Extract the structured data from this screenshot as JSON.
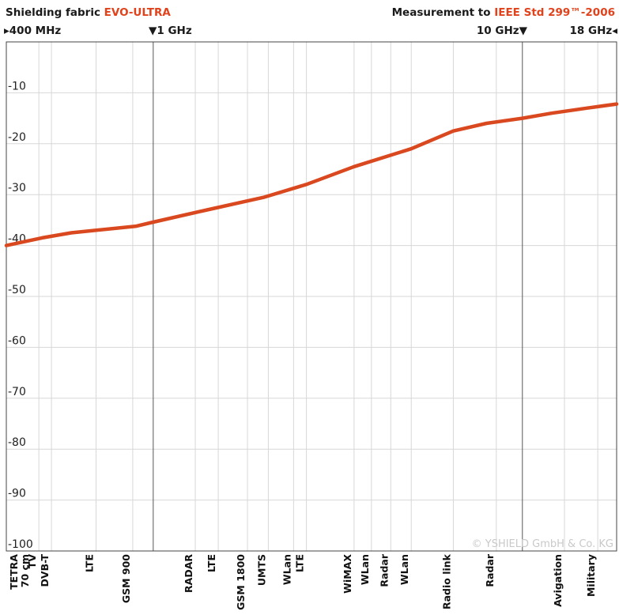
{
  "header": {
    "title_prefix": "Shielding fabric ",
    "title_accent": "EVO-ULTRA",
    "measure_prefix": "Measurement to ",
    "measure_accent": "IEEE Std 299™-2006",
    "marker_400mhz": "▸400 MHz",
    "marker_1ghz": "▼1 GHz",
    "marker_10ghz": "10 GHz▼",
    "marker_18ghz": "18 GHz◂"
  },
  "copyright": "© YSHIELD GmbH & Co. KG",
  "colors": {
    "line": "#d9481f",
    "accent": "#e0421c",
    "grid": "#d7d7d7",
    "major": "#555555"
  },
  "chart_data": {
    "type": "line",
    "x_scale": "frequency (MHz), 400 MHz – 18 GHz",
    "xlim_mhz": [
      400,
      18000
    ],
    "ylim": [
      -100,
      0
    ],
    "yticks": [
      -10,
      -20,
      -30,
      -40,
      -50,
      -60,
      -70,
      -80,
      -90,
      -100
    ],
    "ytick_labels": [
      "-10",
      "-20",
      "-30",
      "-40",
      "-50",
      "-60",
      "-70",
      "-80",
      "-90",
      "-100"
    ],
    "grid": true,
    "major_frequency_lines_mhz": [
      1000,
      10000
    ],
    "series": [
      {
        "points": [
          [
            400,
            -40
          ],
          [
            500,
            -38.5
          ],
          [
            600,
            -37.5
          ],
          [
            900,
            -36.2
          ],
          [
            1000,
            -35.4
          ],
          [
            1400,
            -33
          ],
          [
            2000,
            -30.5
          ],
          [
            2600,
            -28
          ],
          [
            3500,
            -24.5
          ],
          [
            5000,
            -21
          ],
          [
            6500,
            -17.5
          ],
          [
            8000,
            -16
          ],
          [
            10000,
            -15
          ],
          [
            12000,
            -14
          ],
          [
            15000,
            -13
          ],
          [
            18000,
            -12.2
          ]
        ]
      }
    ],
    "band_labels": [
      {
        "text": "TETRA",
        "line2": "70 cm",
        "x": 400
      },
      {
        "text": "TV",
        "x": 490
      },
      {
        "text": "DVB-T",
        "x": 530
      },
      {
        "text": "LTE",
        "x": 700
      },
      {
        "text": "GSM 900",
        "x": 880
      },
      {
        "text": "RADAR",
        "x": 1300
      },
      {
        "text": "LTE",
        "x": 1500
      },
      {
        "text": "GSM 1800",
        "x": 1800
      },
      {
        "text": "UMTS",
        "x": 2050
      },
      {
        "text": "WLan",
        "x": 2400
      },
      {
        "text": "LTE",
        "x": 2600
      },
      {
        "text": "WiMAX",
        "x": 3500
      },
      {
        "text": "WLan",
        "x": 3900
      },
      {
        "text": "Radar",
        "x": 4400
      },
      {
        "text": "WLan",
        "x": 5000
      },
      {
        "text": "Radio link",
        "x": 6500
      },
      {
        "text": "Radar",
        "x": 8500
      },
      {
        "text": "Avigation",
        "x": 13000
      },
      {
        "text": "Military",
        "x": 16000
      }
    ]
  }
}
